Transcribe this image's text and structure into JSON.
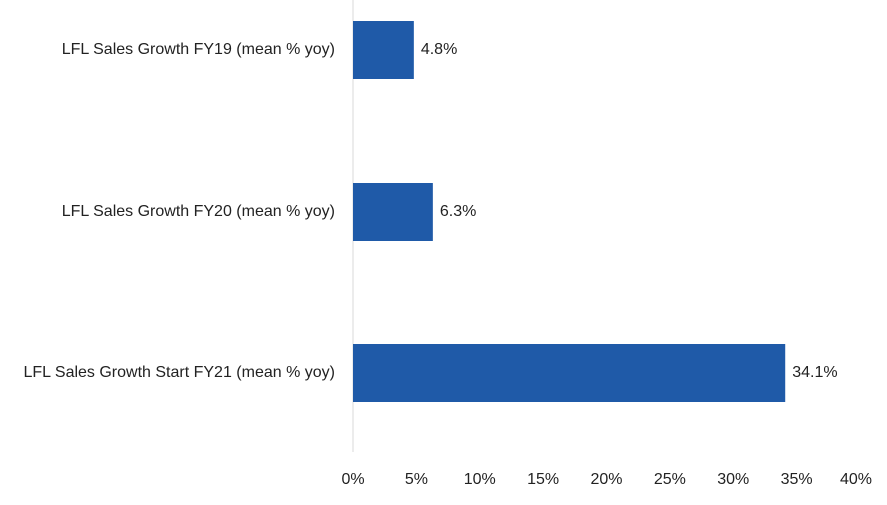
{
  "chart_data": {
    "type": "bar",
    "orientation": "horizontal",
    "categories": [
      "LFL Sales Growth FY19 (mean % yoy)",
      "LFL Sales Growth FY20 (mean % yoy)",
      "LFL Sales Growth Start FY21 (mean % yoy)"
    ],
    "values": [
      4.8,
      6.3,
      34.1
    ],
    "data_labels": [
      "4.8%",
      "6.3%",
      "34.1%"
    ],
    "xlim": [
      0,
      40
    ],
    "x_ticks": [
      0,
      5,
      10,
      15,
      20,
      25,
      30,
      35,
      40
    ],
    "x_tick_labels": [
      "0%",
      "5%",
      "10%",
      "15%",
      "20%",
      "25%",
      "30%",
      "35%",
      "40%"
    ],
    "grid": false,
    "legend": "none",
    "bar_color": "#1f5aa8"
  }
}
